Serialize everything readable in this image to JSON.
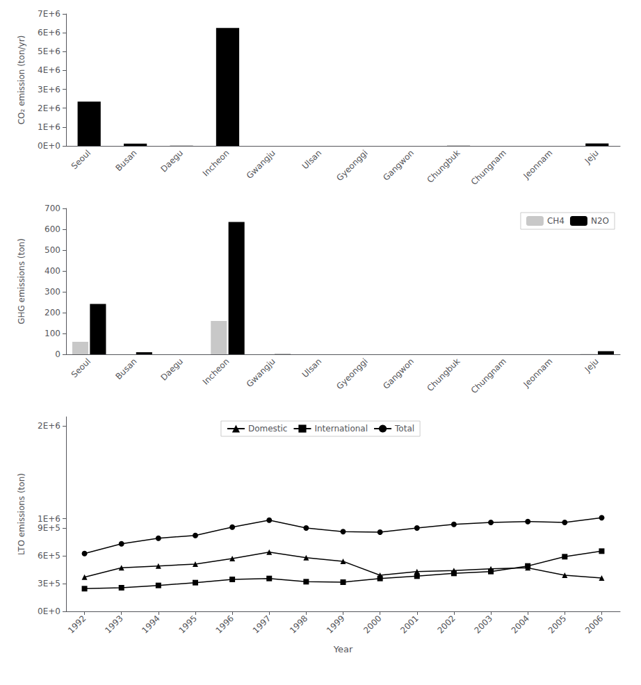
{
  "chart_data": [
    {
      "type": "bar",
      "categories": [
        "Seoul",
        "Busan",
        "Daegu",
        "Incheon",
        "Gwangju",
        "Ulsan",
        "Gyeonggi",
        "Gangwon",
        "Chungbuk",
        "Chungnam",
        "Jeonnam",
        "Jeju"
      ],
      "values": [
        2350000,
        120000,
        5000,
        6250000,
        2000,
        0,
        0,
        1000,
        5000,
        0,
        0,
        130000
      ],
      "color": "#000000",
      "ylabel": "CO₂ emission (ton/yr)",
      "ylim": [
        0,
        7000000
      ],
      "yticks": [
        {
          "value": 0,
          "label": "0E+0"
        },
        {
          "value": 1000000,
          "label": "1E+6"
        },
        {
          "value": 2000000,
          "label": "2E+6"
        },
        {
          "value": 3000000,
          "label": "3E+6"
        },
        {
          "value": 4000000,
          "label": "4E+6"
        },
        {
          "value": 5000000,
          "label": "5E+6"
        },
        {
          "value": 6000000,
          "label": "6E+6"
        },
        {
          "value": 7000000,
          "label": "7E+6"
        }
      ],
      "grid": false
    },
    {
      "type": "bar",
      "categories": [
        "Seoul",
        "Busan",
        "Daegu",
        "Incheon",
        "Gwangju",
        "Ulsan",
        "Gyeonggi",
        "Gangwon",
        "Chungbuk",
        "Chungnam",
        "Jeonnam",
        "Jeju"
      ],
      "series": [
        {
          "name": "CH4",
          "color": "#c8c8c8",
          "values": [
            60,
            0,
            0,
            160,
            0,
            0,
            0,
            0,
            0,
            0,
            0,
            2
          ]
        },
        {
          "name": "N2O",
          "color": "#000000",
          "values": [
            242,
            10,
            0,
            635,
            1,
            0,
            0,
            0,
            0,
            0,
            0,
            15
          ]
        }
      ],
      "ylabel": "GHG emissions (ton)",
      "ylim": [
        0,
        700
      ],
      "yticks": [
        0,
        100,
        200,
        300,
        400,
        500,
        600,
        700
      ],
      "legend": "upper right",
      "grid": false
    },
    {
      "type": "line",
      "x": [
        1992,
        1993,
        1994,
        1995,
        1996,
        1997,
        1998,
        1999,
        2000,
        2001,
        2002,
        2003,
        2004,
        2005,
        2006
      ],
      "series": [
        {
          "name": "Domestic",
          "color": "#000000",
          "marker": "triangle",
          "line_style": "solid",
          "values": [
            370000,
            470000,
            490000,
            510000,
            570000,
            640000,
            580000,
            540000,
            390000,
            430000,
            440000,
            460000,
            470000,
            390000,
            360000
          ]
        },
        {
          "name": "International",
          "color": "#000000",
          "marker": "square",
          "line_style": "solid",
          "values": [
            245000,
            255000,
            280000,
            310000,
            345000,
            355000,
            320000,
            315000,
            355000,
            380000,
            410000,
            430000,
            490000,
            590000,
            650000
          ]
        },
        {
          "name": "Total",
          "color": "#000000",
          "marker": "circle",
          "line_style": "solid",
          "values": [
            625000,
            730000,
            790000,
            820000,
            910000,
            985000,
            900000,
            860000,
            855000,
            900000,
            940000,
            960000,
            970000,
            960000,
            1010000
          ]
        }
      ],
      "xlabel": "Year",
      "ylabel": "LTO emissions (ton)",
      "xlim": [
        1991.5,
        2006.5
      ],
      "xticks": [
        1992,
        1993,
        1994,
        1995,
        1996,
        1997,
        1998,
        1999,
        2000,
        2001,
        2002,
        2003,
        2004,
        2005,
        2006
      ],
      "ylim": [
        0,
        2100000
      ],
      "yticks": [
        {
          "value": 0,
          "label": "0E+0"
        },
        {
          "value": 300000,
          "label": "3E+5"
        },
        {
          "value": 600000,
          "label": "6E+5"
        },
        {
          "value": 900000,
          "label": "9E+5"
        },
        {
          "value": 1000000,
          "label": "1E+6"
        },
        {
          "value": 2000000,
          "label": "2E+6"
        }
      ],
      "legend": "upper center",
      "grid": false
    }
  ]
}
